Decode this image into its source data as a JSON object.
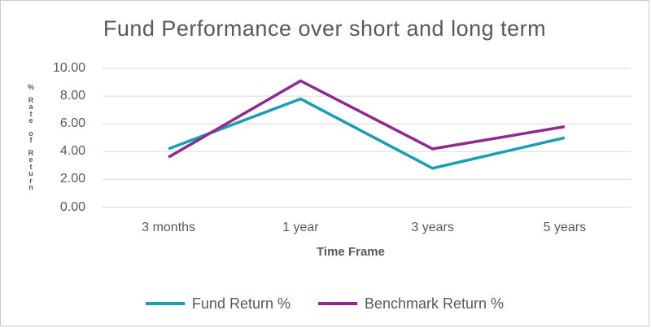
{
  "chart_data": {
    "type": "line",
    "title": "Fund Performance over short and long term",
    "xlabel": "Time Frame",
    "ylabel": "% Rate of Return",
    "categories": [
      "3 months",
      "1 year",
      "3 years",
      "5 years"
    ],
    "series": [
      {
        "name": "Fund Return %",
        "color": "#1A9FAE",
        "values": [
          4.2,
          7.8,
          2.8,
          5.0
        ]
      },
      {
        "name": "Benchmark Return %",
        "color": "#8E2B8E",
        "values": [
          3.6,
          9.1,
          4.2,
          5.8
        ]
      }
    ],
    "ylim": [
      0,
      10
    ],
    "ytick_step": 2,
    "ytick_labels": [
      "0.00",
      "2.00",
      "4.00",
      "6.00",
      "8.00",
      "10.00"
    ],
    "grid": "horizontal",
    "legend_position": "bottom"
  },
  "colors": {
    "text": "#595959",
    "gridline": "#d9d9d9",
    "border": "#c9c9c9",
    "background": "#ffffff"
  }
}
